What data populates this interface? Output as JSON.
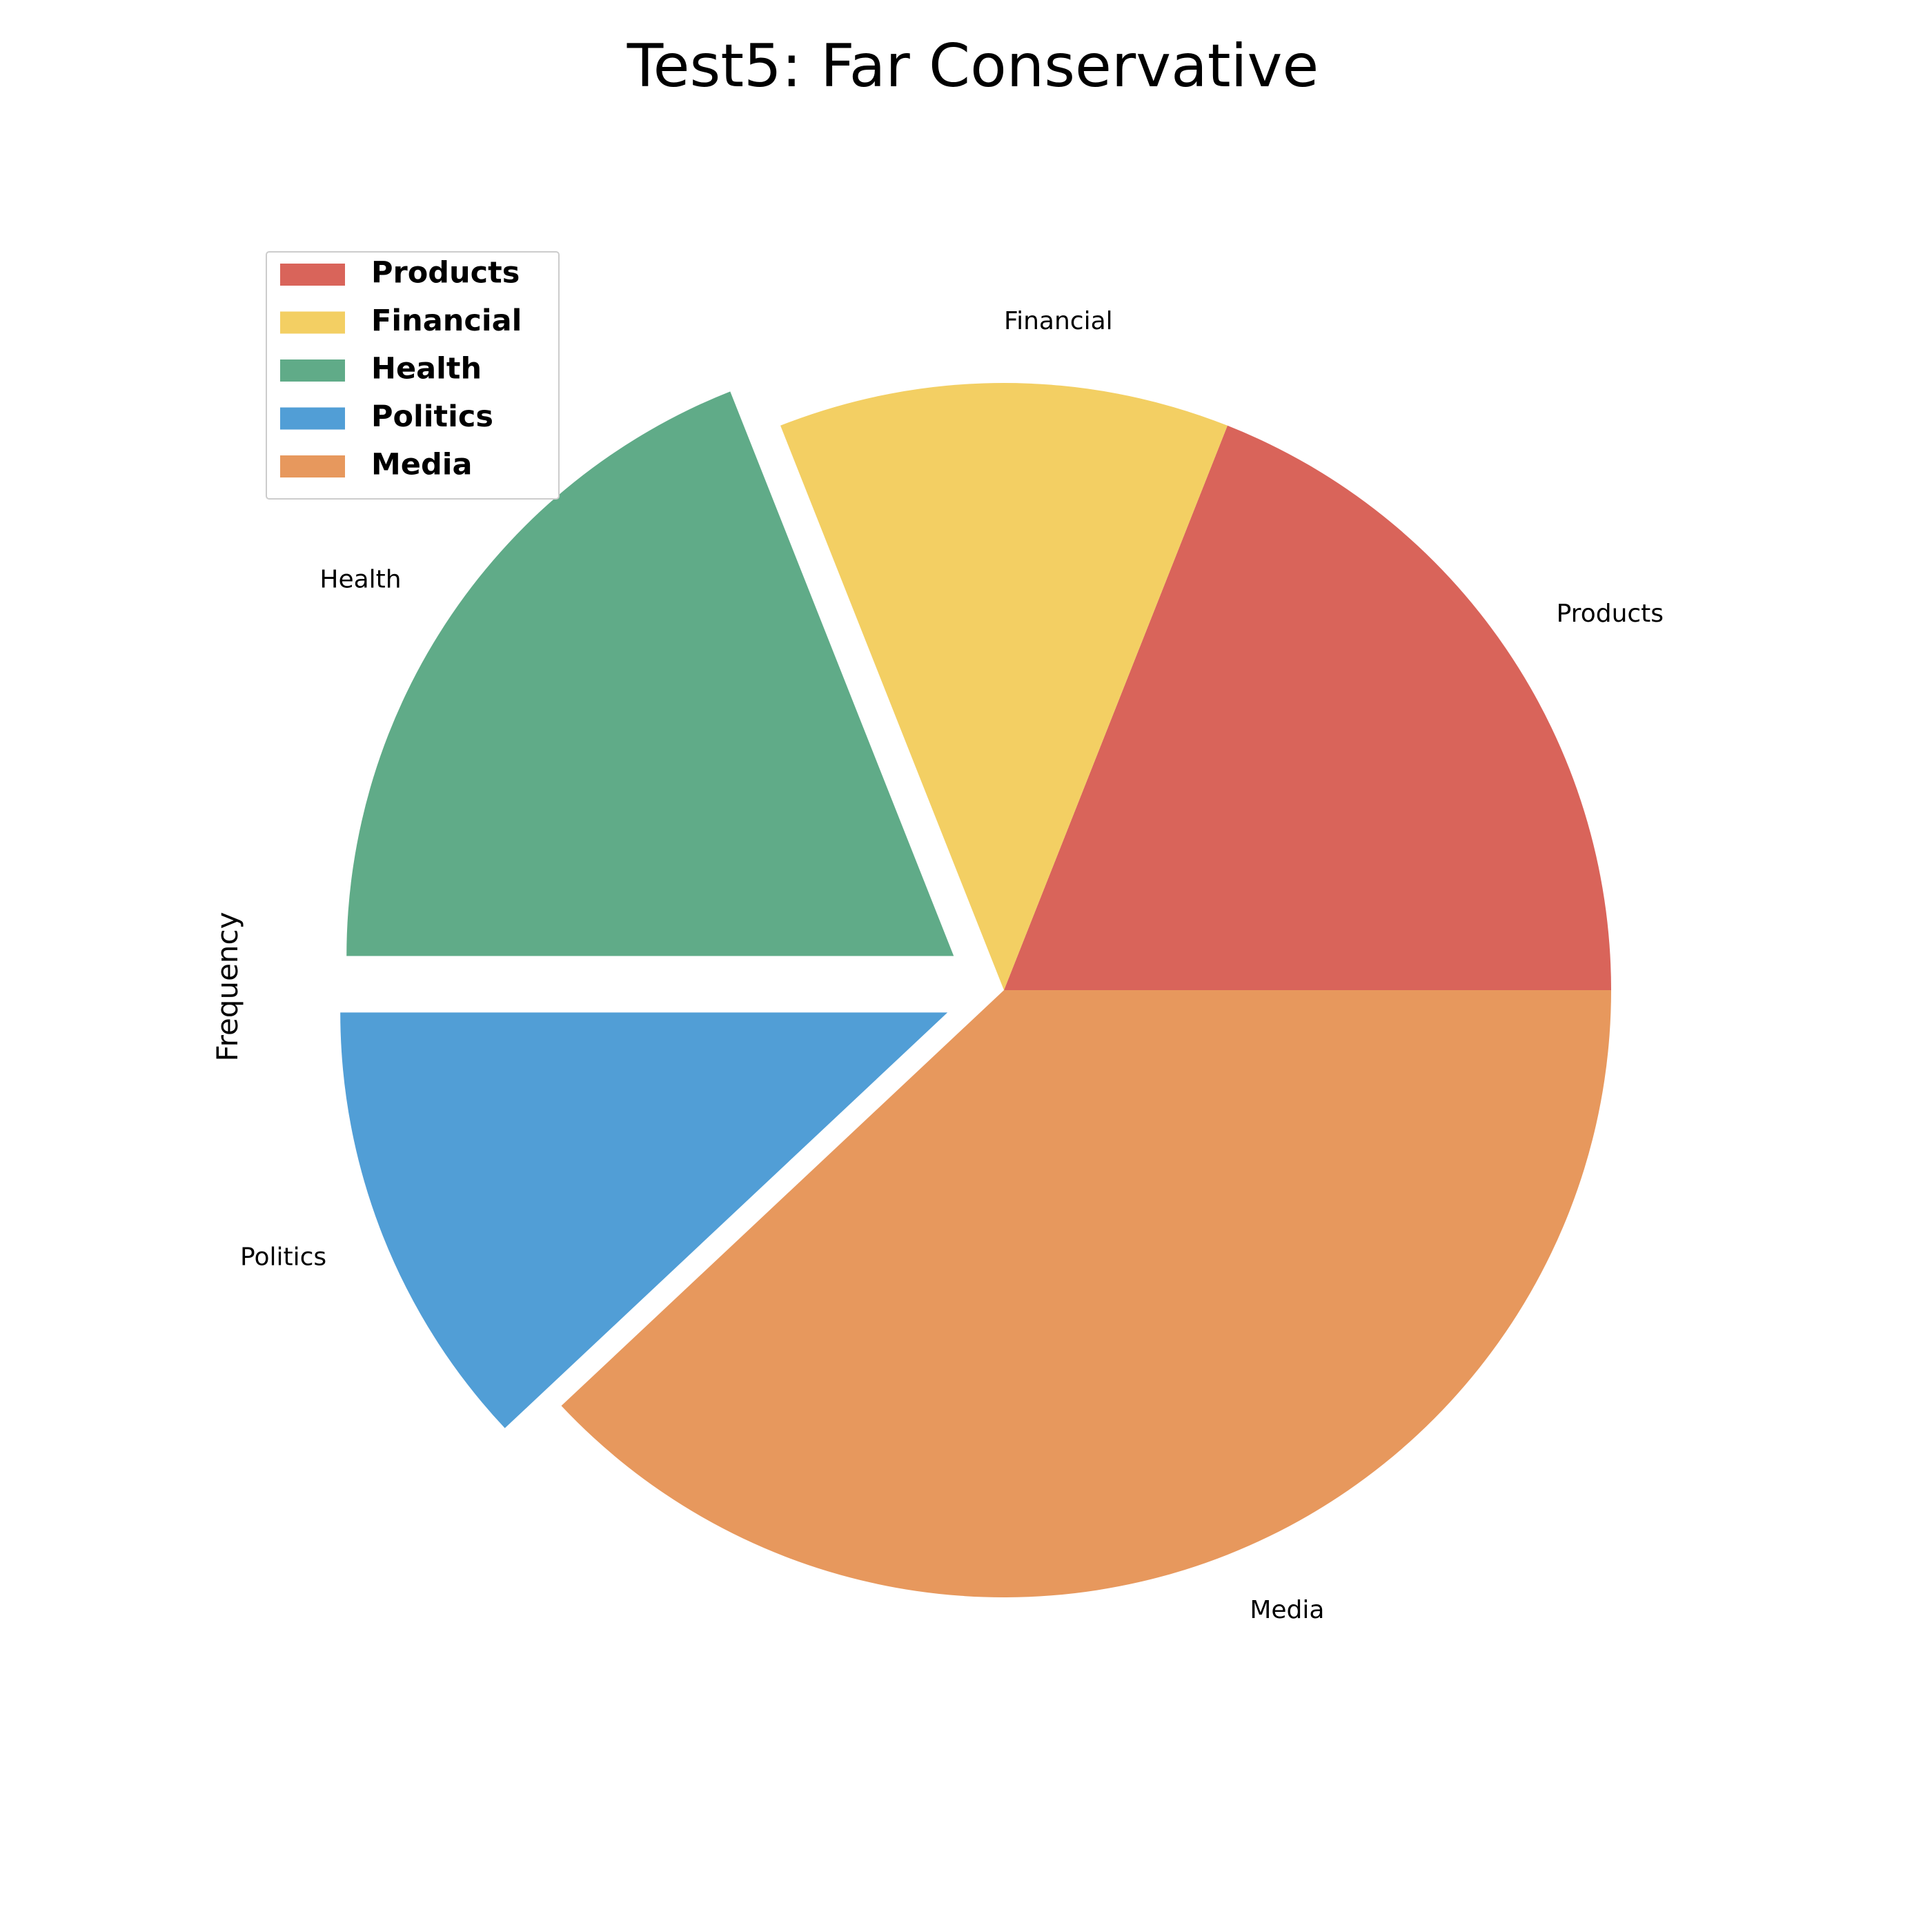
{
  "chart_data": {
    "type": "pie",
    "title": "Test5: Far Conservative",
    "ylabel": "Frequency",
    "xlabel": "",
    "categories": [
      "Products",
      "Financial",
      "Health",
      "Politics",
      "Media"
    ],
    "values": [
      19,
      12,
      19,
      12,
      38
    ],
    "colors": [
      "#d9645a",
      "#f3cf63",
      "#60ab88",
      "#519ed6",
      "#e7985d"
    ],
    "exploded": [
      "Health",
      "Politics"
    ],
    "start_angle_deg": 0,
    "direction": "counterclockwise",
    "legend": {
      "placement": "upper-left",
      "entries": [
        "Products",
        "Financial",
        "Health",
        "Politics",
        "Media"
      ]
    },
    "grid": false
  }
}
